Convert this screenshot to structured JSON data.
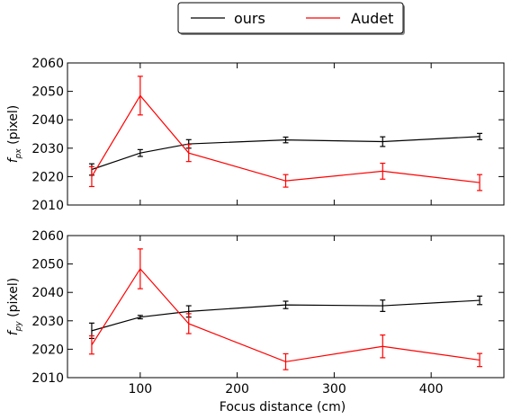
{
  "chart_data": {
    "type": "line",
    "xlabel": "Focus distance (cm)",
    "xlim": [
      25,
      475
    ],
    "xticks": [
      100,
      200,
      300,
      400
    ],
    "legend": {
      "placement": "top-center, above plots",
      "entries": [
        "ours",
        "Audet"
      ]
    },
    "colors": {
      "ours": "#000000",
      "Audet": "#ff0000"
    },
    "panels": [
      {
        "ylabel_main": "f",
        "ylabel_sub": "px",
        "ylabel_unit": "(pixel)",
        "ylim": [
          2010,
          2060
        ],
        "yticks": [
          2010,
          2020,
          2030,
          2040,
          2050,
          2060
        ],
        "series": [
          {
            "name": "ours",
            "x": [
              50,
              100,
              150,
              250,
              350,
              450
            ],
            "y": [
              2022.5,
              2028.3,
              2031.5,
              2032.9,
              2032.3,
              2034.1
            ],
            "err": [
              2.0,
              1.2,
              1.5,
              1.0,
              1.7,
              1.1
            ]
          },
          {
            "name": "Audet",
            "x": [
              50,
              100,
              150,
              250,
              350,
              450
            ],
            "y": [
              2020.0,
              2048.5,
              2028.3,
              2018.5,
              2021.9,
              2017.9
            ],
            "err": [
              3.5,
              6.8,
              3.0,
              2.2,
              2.8,
              2.8
            ]
          }
        ]
      },
      {
        "ylabel_main": "f",
        "ylabel_sub": "py",
        "ylabel_unit": "(pixel)",
        "ylim": [
          2010,
          2060
        ],
        "yticks": [
          2010,
          2020,
          2030,
          2040,
          2050,
          2060
        ],
        "series": [
          {
            "name": "ours",
            "x": [
              50,
              100,
              150,
              250,
              350,
              450
            ],
            "y": [
              2026.5,
              2031.3,
              2033.3,
              2035.6,
              2035.3,
              2037.2
            ],
            "err": [
              2.7,
              0.6,
              2.0,
              1.3,
              2.0,
              1.5
            ]
          },
          {
            "name": "Audet",
            "x": [
              50,
              100,
              150,
              250,
              350,
              450
            ],
            "y": [
              2021.5,
              2048.3,
              2029.0,
              2015.6,
              2021.0,
              2016.2
            ],
            "err": [
              3.2,
              7.0,
              3.5,
              2.8,
              4.0,
              2.3
            ]
          }
        ]
      }
    ]
  }
}
